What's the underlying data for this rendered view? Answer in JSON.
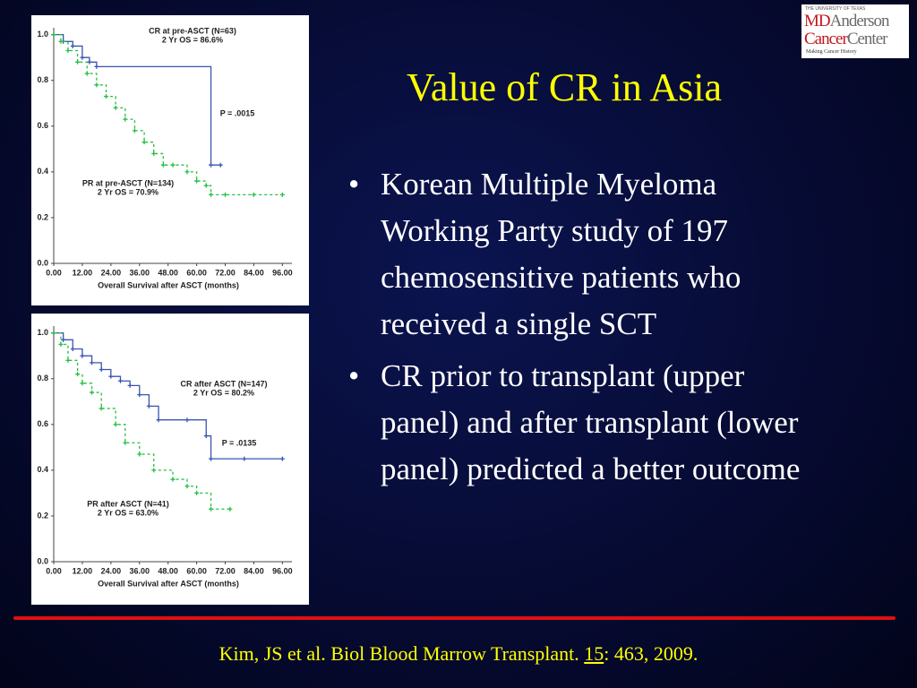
{
  "slide": {
    "title": "Value of CR in Asia",
    "bullets": [
      "Korean Multiple Myeloma Working Party study of 197 chemosensitive patients who received a single SCT",
      "CR prior to transplant (upper panel) and after transplant (lower panel) predicted a better outcome"
    ],
    "citation": {
      "prefix": "Kim, JS et al. Biol Blood Marrow Transplant. ",
      "volume": "15",
      "suffix": ": 463, 2009."
    },
    "logo": {
      "top": "THE UNIVERSITY OF TEXAS",
      "md": "MD",
      "anderson": "Anderson",
      "cancer": "Cancer",
      "center": "Center",
      "tagline": "Making Cancer History"
    }
  },
  "chart_data": [
    {
      "type": "line",
      "x_label": "Overall Survival after ASCT (months)",
      "xlim": [
        0,
        100
      ],
      "ylim": [
        0,
        1.03
      ],
      "xticks": [
        {
          "value": 0,
          "label": "0.00"
        },
        {
          "value": 12,
          "label": "12.00"
        },
        {
          "value": 24,
          "label": "24.00"
        },
        {
          "value": 36,
          "label": "36.00"
        },
        {
          "value": 48,
          "label": "48.00"
        },
        {
          "value": 60,
          "label": "60.00"
        },
        {
          "value": 72,
          "label": "72.00"
        },
        {
          "value": 84,
          "label": "84.00"
        },
        {
          "value": 96,
          "label": "96.00"
        }
      ],
      "yticks": [
        {
          "value": 0,
          "label": "0.0"
        },
        {
          "value": 0.2,
          "label": "0.2"
        },
        {
          "value": 0.4,
          "label": "0.4"
        },
        {
          "value": 0.6,
          "label": "0.6"
        },
        {
          "value": 0.8,
          "label": "0.8"
        },
        {
          "value": 1,
          "label": "1.0"
        }
      ],
      "annotations": [
        "CR at pre-ASCT (N=63)",
        "2 Yr OS = 86.6%",
        "P = .0015",
        "PR at pre-ASCT (N=134)",
        "2 Yr OS = 70.9%"
      ],
      "series": [
        {
          "color": "#3a55b0",
          "x": [
            0,
            4,
            8,
            12,
            15,
            18,
            66,
            70
          ],
          "values": [
            1,
            0.97,
            0.95,
            0.9,
            0.88,
            0.86,
            0.43,
            0.43
          ]
        },
        {
          "color": "#22c040",
          "x": [
            0,
            3,
            6,
            10,
            14,
            18,
            22,
            26,
            30,
            34,
            38,
            42,
            46,
            50,
            56,
            60,
            64,
            66,
            72,
            84,
            96
          ],
          "values": [
            1,
            0.97,
            0.93,
            0.88,
            0.83,
            0.78,
            0.73,
            0.68,
            0.63,
            0.58,
            0.53,
            0.48,
            0.43,
            0.43,
            0.4,
            0.36,
            0.34,
            0.3,
            0.3,
            0.3,
            0.3
          ]
        }
      ]
    },
    {
      "type": "line",
      "x_label": "Overall Survival after ASCT (months)",
      "xlim": [
        0,
        100
      ],
      "ylim": [
        0,
        1.03
      ],
      "xticks": [
        {
          "value": 0,
          "label": "0.00"
        },
        {
          "value": 12,
          "label": "12.00"
        },
        {
          "value": 24,
          "label": "24.00"
        },
        {
          "value": 36,
          "label": "36.00"
        },
        {
          "value": 48,
          "label": "48.00"
        },
        {
          "value": 60,
          "label": "60.00"
        },
        {
          "value": 72,
          "label": "72.00"
        },
        {
          "value": 84,
          "label": "84.00"
        },
        {
          "value": 96,
          "label": "96.00"
        }
      ],
      "yticks": [
        {
          "value": 0,
          "label": "0.0"
        },
        {
          "value": 0.2,
          "label": "0.2"
        },
        {
          "value": 0.4,
          "label": "0.4"
        },
        {
          "value": 0.6,
          "label": "0.6"
        },
        {
          "value": 0.8,
          "label": "0.8"
        },
        {
          "value": 1,
          "label": "1.0"
        }
      ],
      "annotations": [
        "CR after ASCT (N=147)",
        "2 Yr OS = 80.2%",
        "P = .0135",
        "PR after ASCT (N=41)",
        "2 Yr OS = 63.0%"
      ],
      "series": [
        {
          "color": "#3a55b0",
          "x": [
            0,
            4,
            8,
            12,
            16,
            20,
            24,
            28,
            32,
            36,
            40,
            44,
            56,
            64,
            66,
            80,
            96
          ],
          "values": [
            1,
            0.97,
            0.93,
            0.9,
            0.87,
            0.84,
            0.81,
            0.79,
            0.77,
            0.73,
            0.68,
            0.62,
            0.62,
            0.55,
            0.45,
            0.45,
            0.45
          ]
        },
        {
          "color": "#22c040",
          "x": [
            0,
            3,
            6,
            10,
            12,
            16,
            20,
            26,
            30,
            36,
            42,
            50,
            56,
            60,
            66,
            74
          ],
          "values": [
            1,
            0.95,
            0.88,
            0.82,
            0.78,
            0.74,
            0.67,
            0.6,
            0.52,
            0.47,
            0.4,
            0.36,
            0.33,
            0.3,
            0.23,
            0.23
          ]
        }
      ]
    }
  ]
}
